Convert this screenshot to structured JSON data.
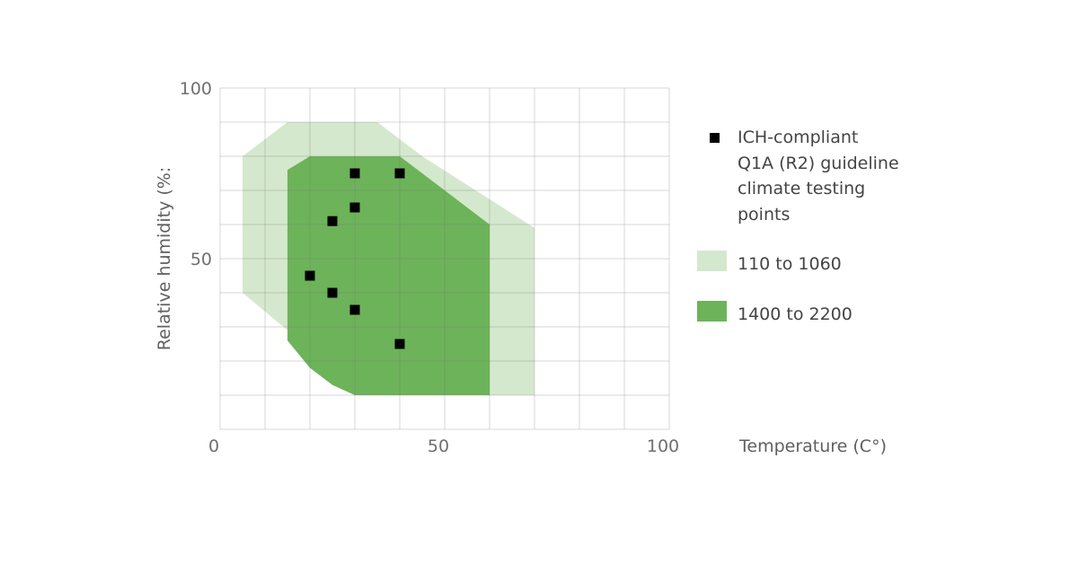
{
  "chart_data": {
    "type": "scatter",
    "xlabel": "Temperature (C°)",
    "ylabel": "Relative humidity (%:",
    "xlim": [
      0,
      100
    ],
    "ylim": [
      0,
      100
    ],
    "x_ticks": [
      "0",
      "50",
      "100"
    ],
    "y_ticks": [
      "100",
      "50"
    ],
    "x_tick_values": [
      0,
      50,
      100
    ],
    "y_tick_values": [
      100,
      50
    ],
    "grid": true,
    "grid_step": 10,
    "legend_position": "right",
    "regions": [
      {
        "name": "110 to 1060",
        "color": "#d4e8cd",
        "polygon": [
          [
            5,
            40
          ],
          [
            5,
            80
          ],
          [
            15,
            90
          ],
          [
            35,
            90
          ],
          [
            45,
            80
          ],
          [
            70,
            59
          ],
          [
            70,
            10
          ],
          [
            35,
            10
          ],
          [
            25,
            18
          ]
        ]
      },
      {
        "name": "1400 to 2200",
        "color": "#6db35a",
        "polygon": [
          [
            15,
            76
          ],
          [
            20,
            80
          ],
          [
            40,
            80
          ],
          [
            60,
            60
          ],
          [
            60,
            10
          ],
          [
            30,
            10
          ],
          [
            25,
            13
          ],
          [
            20,
            18
          ],
          [
            15,
            26
          ]
        ]
      }
    ],
    "series": [
      {
        "name": "ICH-compliant Q1A (R2) guideline climate testing points",
        "color": "#000000",
        "points": [
          [
            30,
            75
          ],
          [
            40,
            75
          ],
          [
            30,
            65
          ],
          [
            25,
            61
          ],
          [
            20,
            45
          ],
          [
            25,
            40
          ],
          [
            30,
            35
          ],
          [
            40,
            25
          ]
        ]
      }
    ],
    "legend": [
      {
        "label_lines": [
          "ICH-compliant",
          "Q1A (R2) guideline",
          "climate testing",
          "points"
        ],
        "symbol": "square-marker"
      },
      {
        "label_lines": [
          "110 to 1060"
        ],
        "symbol": "light-green-swatch"
      },
      {
        "label_lines": [
          "1400 to 2200"
        ],
        "symbol": "dark-green-swatch"
      }
    ]
  }
}
